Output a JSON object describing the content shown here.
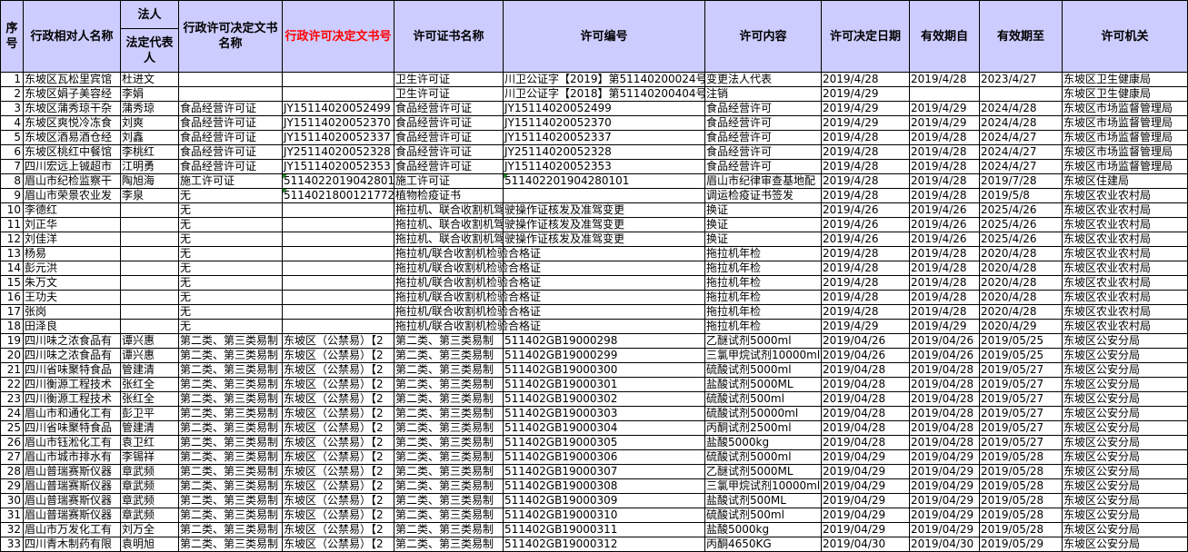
{
  "header": {
    "seq": "序号",
    "name": "行政相对人名称",
    "legal_group": "法人",
    "legal": "法定代表人",
    "doc_name": "行政许可决定文书名称",
    "doc_no": "行政许可决定文书号",
    "cert_name": "许可证书名称",
    "license_no": "许可编号",
    "content": "许可内容",
    "decision_date": "许可决定日期",
    "valid_from": "有效期自",
    "valid_to": "有效期至",
    "authority": "许可机关"
  },
  "colors": {
    "header_bg": "#ccccff",
    "doc_no_header": "#ff0000",
    "error_triangle": "#1f8a1f"
  },
  "rows": [
    [
      "1",
      "东坡区瓦松里宾馆",
      "杜进文",
      "",
      "",
      "卫生许可证",
      "川卫公证字【2019】第51140200024号",
      "变更法人代表",
      "2019/4/28",
      "2019/4/28",
      "2023/4/27",
      "东坡区卫生健康局"
    ],
    [
      "2",
      "东坡区娟子美容经",
      "李娟",
      "",
      "",
      "卫生许可证",
      "川卫公证字【2018】第51140200404号",
      "注销",
      "2019/4/29",
      "",
      "",
      "东坡区卫生健康局"
    ],
    [
      "3",
      "东坡区蒲秀琼干杂",
      "蒲秀琼",
      "食品经营许可证",
      "JY15114020052499",
      "食品经营许可证",
      "JY15114020052499",
      "食品经营许可",
      "2019/4/29",
      "2019/4/29",
      "2024/4/28",
      "东坡区市场监督管理局"
    ],
    [
      "4",
      "东坡区爽悦冷冻食",
      "刘爽",
      "食品经营许可证",
      "JY15114020052370",
      "食品经营许可证",
      "JY15114020052370",
      "食品经营许可",
      "2019/4/29",
      "2019/4/29",
      "2024/4/28",
      "东坡区市场监督管理局"
    ],
    [
      "5",
      "东坡区酒易酒仓经",
      "刘鑫",
      "食品经营许可证",
      "JY15114020052337",
      "食品经营许可证",
      "JY15114020052337",
      "食品经营许可",
      "2019/4/28",
      "2019/4/28",
      "2024/4/27",
      "东坡区市场监督管理局"
    ],
    [
      "6",
      "东坡区桃红中餐馆",
      "李桃红",
      "食品经营许可证",
      "JY25114020052328",
      "食品经营许可证",
      "JY25114020052328",
      "食品经营许可",
      "2019/4/28",
      "2019/4/28",
      "2024/4/27",
      "东坡区市场监督管理局"
    ],
    [
      "7",
      "四川宏远上铖超市",
      "江明勇",
      "食品经营许可证",
      "JY15114020052353",
      "食品经营许可证",
      "JY15114020052353",
      "食品经营许可",
      "2019/4/28",
      "2019/4/28",
      "2024/4/27",
      "东坡区市场监督管理局"
    ],
    [
      "8",
      "眉山市纪检监察干",
      "陶旭海",
      "施工许可证",
      "51140220190428010",
      "施工许可证",
      "511402201904280101",
      "眉山市纪律审查基地配",
      "2019/4/28",
      "2019/4/28",
      "2019/7/28",
      "东坡区住建局"
    ],
    [
      "9",
      "眉山市荣景农业发",
      "李泉",
      "无",
      "5114021800121772",
      "植物检疫证书",
      "",
      "调运检疫证书签发",
      "2019/4/28",
      "2019/4/28",
      "2019/5/8",
      "东坡区农业农村局"
    ],
    [
      "10",
      "李德红",
      "",
      "无",
      "",
      "拖拉机、联合收割机驾驶操作证核发及准驾变更",
      "",
      "换证",
      "2019/4/26",
      "2019/4/26",
      "2025/4/26",
      "东坡区农业农村局"
    ],
    [
      "11",
      "刘正华",
      "",
      "无",
      "",
      "拖拉机、联合收割机驾驶操作证核发及准驾变更",
      "",
      "换证",
      "2019/4/26",
      "2019/4/26",
      "2025/4/26",
      "东坡区农业农村局"
    ],
    [
      "12",
      "刘佳洋",
      "",
      "无",
      "",
      "拖拉机、联合收割机驾驶操作证核发及准驾变更",
      "",
      "换证",
      "2019/4/26",
      "2019/4/26",
      "2025/4/26",
      "东坡区农业农村局"
    ],
    [
      "13",
      "杨易",
      "",
      "无",
      "",
      "拖拉机/联合收割机检验合格证",
      "",
      "拖拉机年检",
      "2019/4/28",
      "2019/4/28",
      "2020/4/28",
      "东坡区农业农村局"
    ],
    [
      "14",
      "彭元洪",
      "",
      "无",
      "",
      "拖拉机/联合收割机检验合格证",
      "",
      "拖拉机年检",
      "2019/4/28",
      "2019/4/28",
      "2020/4/28",
      "东坡区农业农村局"
    ],
    [
      "15",
      "朱万文",
      "",
      "无",
      "",
      "拖拉机/联合收割机检验合格证",
      "",
      "拖拉机年检",
      "2019/4/28",
      "2019/4/28",
      "2020/4/28",
      "东坡区农业农村局"
    ],
    [
      "16",
      "王功夫",
      "",
      "无",
      "",
      "拖拉机/联合收割机检验合格证",
      "",
      "拖拉机年检",
      "2019/4/28",
      "2019/4/28",
      "2020/4/28",
      "东坡区农业农村局"
    ],
    [
      "17",
      "张岗",
      "",
      "无",
      "",
      "拖拉机/联合收割机检验合格证",
      "",
      "拖拉机年检",
      "2019/4/28",
      "2019/4/28",
      "2020/4/28",
      "东坡区农业农村局"
    ],
    [
      "18",
      "田泽良",
      "",
      "无",
      "",
      "拖拉机/联合收割机检验合格证",
      "",
      "拖拉机年检",
      "2019/4/29",
      "2019/4/29",
      "2020/4/29",
      "东坡区农业农村局"
    ],
    [
      "19",
      "四川味之浓食品有",
      "谭兴惠",
      "第二类、第三类易制",
      "东坡区（公禁易）【2",
      "第二类、第三类易制",
      "511402GB19000298",
      "乙醚试剂5000ml",
      "2019/04/26",
      "2019/04/26",
      "2019/05/25",
      "东坡区公安分局"
    ],
    [
      "20",
      "四川味之浓食品有",
      "谭兴惠",
      "第二类、第三类易制",
      "东坡区（公禁易）【2",
      "第二类、第三类易制",
      "511402GB19000299",
      "三氯甲烷试剂10000ml",
      "2019/04/26",
      "2019/04/26",
      "2019/05/25",
      "东坡区公安分局"
    ],
    [
      "21",
      "四川省味聚特食品",
      "管建清",
      "第二类、第三类易制",
      "东坡区（公禁易）【2",
      "第二类、第三类易制",
      "511402GB19000300",
      "硫酸试剂5000ml",
      "2019/04/28",
      "2019/04/28",
      "2019/05/27",
      "东坡区公安分局"
    ],
    [
      "22",
      "四川衡源工程技术",
      "张红全",
      "第二类、第三类易制",
      "东坡区（公禁易）【2",
      "第二类、第三类易制",
      "511402GB19000301",
      "盐酸试剂5000ML",
      "2019/04/28",
      "2019/04/28",
      "2019/05/27",
      "东坡区公安分局"
    ],
    [
      "23",
      "四川衡源工程技术",
      "张红全",
      "第二类、第三类易制",
      "东坡区（公禁易）【2",
      "第二类、第三类易制",
      "511402GB19000302",
      "硫酸试剂500ml",
      "2019/04/28",
      "2019/04/28",
      "2019/05/27",
      "东坡区公安分局"
    ],
    [
      "24",
      "眉山市和通化工有",
      "彭卫平",
      "第二类、第三类易制",
      "东坡区（公禁易）【2",
      "第二类、第三类易制",
      "511402GB19000303",
      "硫酸试剂50000ml",
      "2019/04/28",
      "2019/04/28",
      "2019/05/27",
      "东坡区公安分局"
    ],
    [
      "25",
      "四川省味聚特食品",
      "管建清",
      "第二类、第三类易制",
      "东坡区（公禁易）【2",
      "第二类、第三类易制",
      "511402GB19000304",
      "丙酮试剂2500ml",
      "2019/04/28",
      "2019/04/28",
      "2019/05/27",
      "东坡区公安分局"
    ],
    [
      "26",
      "眉山市钰淞化工有",
      "袁卫红",
      "第二类、第三类易制",
      "东坡区（公禁易）【2",
      "第二类、第三类易制",
      "511402GB19000305",
      "盐酸5000kg",
      "2019/04/28",
      "2019/04/28",
      "2019/05/27",
      "东坡区公安分局"
    ],
    [
      "27",
      "眉山市城市排水有",
      "李锡祥",
      "第二类、第三类易制",
      "东坡区（公禁易）【2",
      "第二类、第三类易制",
      "511402GB19000306",
      "硫酸试剂5000ml",
      "2019/04/29",
      "2019/04/29",
      "2019/05/28",
      "东坡区公安分局"
    ],
    [
      "28",
      "眉山普瑞赛斯仪器",
      "章武频",
      "第二类、第三类易制",
      "东坡区（公禁易）【2",
      "第二类、第三类易制",
      "511402GB19000307",
      "乙醚试剂5000ML",
      "2019/04/29",
      "2019/04/29",
      "2019/05/28",
      "东坡区公安分局"
    ],
    [
      "29",
      "眉山普瑞赛斯仪器",
      "章武频",
      "第二类、第三类易制",
      "东坡区（公禁易）【2",
      "第二类、第三类易制",
      "511402GB19000308",
      "三氯甲烷试剂10000ml",
      "2019/04/29",
      "2019/04/29",
      "2019/05/28",
      "东坡区公安分局"
    ],
    [
      "30",
      "眉山普瑞赛斯仪器",
      "章武频",
      "第二类、第三类易制",
      "东坡区（公禁易）【2",
      "第二类、第三类易制",
      "511402GB19000309",
      "盐酸试剂500ML",
      "2019/04/29",
      "2019/04/29",
      "2019/05/28",
      "东坡区公安分局"
    ],
    [
      "31",
      "眉山普瑞赛斯仪器",
      "章武频",
      "第二类、第三类易制",
      "东坡区（公禁易）【2",
      "第二类、第三类易制",
      "511402GB19000310",
      "硫酸试剂500ml",
      "2019/04/29",
      "2019/04/29",
      "2019/05/28",
      "东坡区公安分局"
    ],
    [
      "32",
      "眉山市万发化工有",
      "刘万全",
      "第二类、第三类易制",
      "东坡区（公禁易）【2",
      "第二类、第三类易制",
      "511402GB19000311",
      "盐酸5000kg",
      "2019/04/29",
      "2019/04/29",
      "2019/05/28",
      "东坡区公安分局"
    ],
    [
      "33",
      "四川青木制药有限",
      "袁明旭",
      "第二类、第三类易制",
      "东坡区（公禁易）【2",
      "第二类、第三类易制",
      "511402GB19000312",
      "丙酮4650KG",
      "2019/04/30",
      "2019/04/30",
      "2019/05/29",
      "东坡区公安分局"
    ]
  ]
}
